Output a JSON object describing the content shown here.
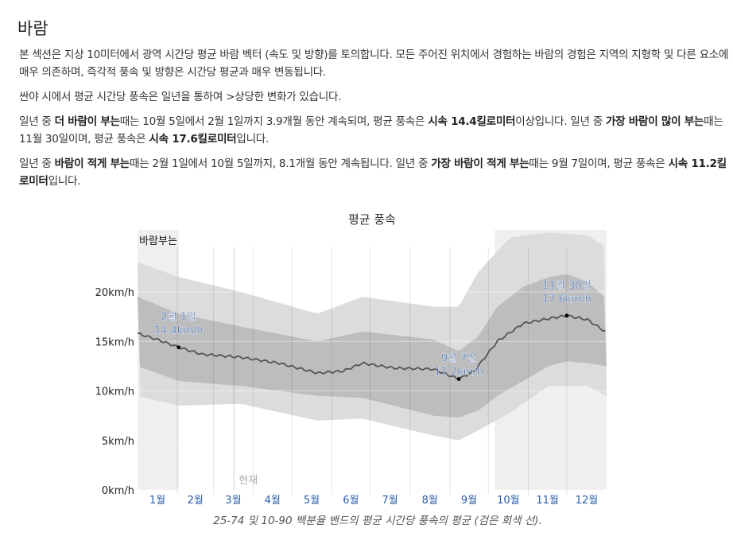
{
  "title": "바람",
  "paragraphs": {
    "p1": "본 섹션은 지상 10미터에서 광역 시간당 평균 바람 벡터 (속도 및 방향)를 토의합니다. 모든 주어진 위치에서 경험하는 바람의 경험은 지역의 지형학 및 다른 요소에 매우 의존하며, 즉각적 풍속 및 방향은 시간당 평균과 매우 변동됩니다.",
    "p2": "싼야 시에서 평균 시간당 풍속은 일년을 통하여 >상당한 변화가 있습니다.",
    "p3a": "일년 중 ",
    "p3b": "더 바람이 부는",
    "p3c": "때는 10월 5일에서 2월 1일까지 3.9개월 동안 계속되며, 평균 풍속은 ",
    "p3d": "시속 14.4킬로미터",
    "p3e": "이상입니다. 일년 중 ",
    "p3f": "가장 바람이 많이 부는",
    "p3g": "때는 11월 30일이며, 평균 풍속은 ",
    "p3h": "시속 17.6킬로미터",
    "p3i": "입니다.",
    "p4a": "일년 중 ",
    "p4b": "바람이 적게 부는",
    "p4c": "때는 2월 1일에서 10월 5일까지, 8.1개월 동안 계속됩니다. 일년 중 ",
    "p4d": "가장 바람이 적게 부는",
    "p4e": "때는 9월 7일이며, 평균 풍속은 ",
    "p4f": "시속 11.2킬로미터",
    "p4g": "입니다."
  },
  "caption": "25-74 및 10-90 백분율 밴드의 평균 시간당 풍속의 평균 (검은 회색 선).",
  "chart_data": {
    "type": "area",
    "title": "평균 풍속",
    "ylim": [
      0,
      26.5
    ],
    "yticks": [
      0,
      5,
      10,
      15,
      20
    ],
    "ytick_labels": [
      "0km/h",
      "5km/h",
      "10km/h",
      "15km/h",
      "20km/h"
    ],
    "month_labels": [
      "1월",
      "2월",
      "3월",
      "4월",
      "5월",
      "6월",
      "7월",
      "8월",
      "9월",
      "10월",
      "11월",
      "12월"
    ],
    "windy_label": "바람부는",
    "windy_periods": [
      [
        0,
        32
      ],
      [
        278,
        365
      ]
    ],
    "now_label": "현재",
    "now_day": 75,
    "mean": [
      [
        0,
        15.8
      ],
      [
        15,
        15.2
      ],
      [
        32,
        14.4
      ],
      [
        50,
        13.7
      ],
      [
        80,
        13.4
      ],
      [
        110,
        12.8
      ],
      [
        140,
        11.8
      ],
      [
        160,
        12.0
      ],
      [
        175,
        12.8
      ],
      [
        200,
        12.3
      ],
      [
        230,
        12.2
      ],
      [
        250,
        11.2
      ],
      [
        262,
        12.0
      ],
      [
        280,
        15.0
      ],
      [
        300,
        16.8
      ],
      [
        320,
        17.3
      ],
      [
        334,
        17.6
      ],
      [
        350,
        17.2
      ],
      [
        365,
        15.9
      ]
    ],
    "p25": [
      [
        0,
        12.5
      ],
      [
        32,
        11.0
      ],
      [
        80,
        10.5
      ],
      [
        140,
        9.5
      ],
      [
        175,
        9.3
      ],
      [
        230,
        7.5
      ],
      [
        250,
        7.3
      ],
      [
        265,
        8.0
      ],
      [
        280,
        9.5
      ],
      [
        300,
        11.0
      ],
      [
        320,
        12.5
      ],
      [
        334,
        13.0
      ],
      [
        350,
        12.8
      ],
      [
        365,
        12.5
      ]
    ],
    "p75": [
      [
        0,
        19.5
      ],
      [
        32,
        17.8
      ],
      [
        80,
        16.5
      ],
      [
        140,
        15.0
      ],
      [
        175,
        16.0
      ],
      [
        230,
        15.2
      ],
      [
        250,
        14.0
      ],
      [
        265,
        15.5
      ],
      [
        280,
        18.5
      ],
      [
        300,
        20.5
      ],
      [
        320,
        21.5
      ],
      [
        334,
        21.8
      ],
      [
        350,
        21.0
      ],
      [
        365,
        19.3
      ]
    ],
    "p10": [
      [
        0,
        9.5
      ],
      [
        32,
        8.5
      ],
      [
        80,
        8.7
      ],
      [
        140,
        7.0
      ],
      [
        175,
        7.2
      ],
      [
        230,
        5.5
      ],
      [
        250,
        5.0
      ],
      [
        265,
        6.0
      ],
      [
        290,
        7.8
      ],
      [
        320,
        10.5
      ],
      [
        350,
        10.5
      ],
      [
        365,
        9.5
      ]
    ],
    "p90": [
      [
        0,
        23.0
      ],
      [
        32,
        21.5
      ],
      [
        80,
        20.0
      ],
      [
        140,
        17.8
      ],
      [
        175,
        19.5
      ],
      [
        230,
        18.5
      ],
      [
        250,
        18.5
      ],
      [
        265,
        22.0
      ],
      [
        290,
        25.5
      ],
      [
        320,
        26.0
      ],
      [
        350,
        25.7
      ],
      [
        365,
        24.5
      ]
    ],
    "annotations": [
      {
        "day": 32,
        "value": 14.4,
        "date": "2월 1일",
        "label": "14.4km/h"
      },
      {
        "day": 250,
        "value": 11.2,
        "date": "9월 7일",
        "label": "11.2km/h"
      },
      {
        "day": 334,
        "value": 17.6,
        "date": "11월 30일",
        "label": "17.6km/h"
      }
    ],
    "colors": {
      "band90": "#dcdcdc",
      "band75": "#bdbdbd",
      "mean": "#555555",
      "label": "#2255aa",
      "windy": "#efefef"
    }
  }
}
